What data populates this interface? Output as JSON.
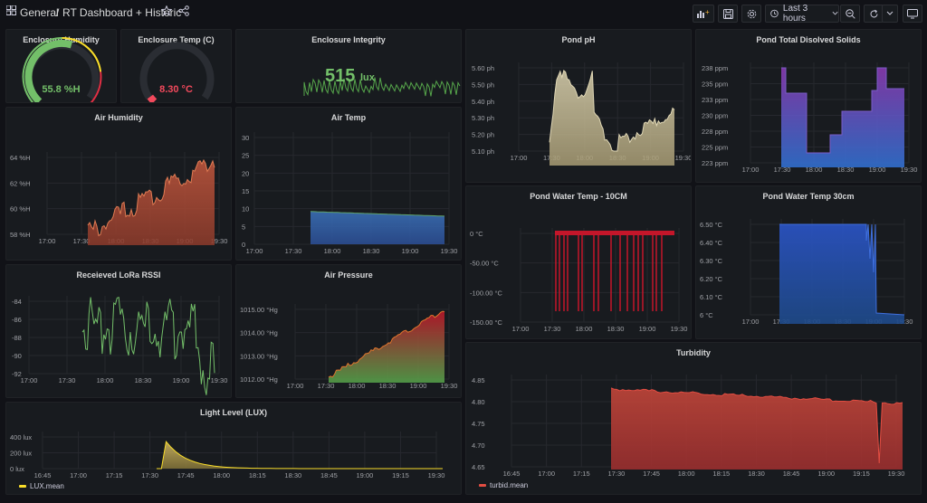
{
  "header": {
    "folder": "General",
    "separator": "/",
    "title": "RT Dashboard + Historic",
    "time_range": "Last 3 hours"
  },
  "colors": {
    "green": "#73bf69",
    "orange": "#e07b53",
    "red": "#e02f44",
    "yellow": "#fade2a",
    "blue": "#3274d9",
    "purple": "#8f3bb8",
    "grid": "#26282e",
    "axis": "#9fa1a6"
  },
  "gauges": [
    {
      "title": "Enclosure Humidity",
      "value": "55.8 %H",
      "fraction": 0.56,
      "color": "#73bf69"
    },
    {
      "title": "Enclosure Temp (C)",
      "value": "8.30 °C",
      "fraction": 0.04,
      "color": "#f2495c"
    }
  ],
  "stat": {
    "title": "Enclosure Integrity",
    "value": "515",
    "unit": "lux",
    "color": "#73bf69"
  },
  "charts": {
    "ph": {
      "title": "Pond pH",
      "y_ticks": [
        "5.60 ph",
        "5.50 ph",
        "5.40 ph",
        "5.30 ph",
        "5.20 ph",
        "5.10 ph"
      ],
      "x_ticks": [
        "17:00",
        "17:30",
        "18:00",
        "18:30",
        "19:00",
        "19:30"
      ]
    },
    "tds": {
      "title": "Pond Total Disolved Solids",
      "y_ticks": [
        "238 ppm",
        "235 ppm",
        "233 ppm",
        "230 ppm",
        "228 ppm",
        "225 ppm",
        "223 ppm"
      ],
      "x_ticks": [
        "17:00",
        "17:30",
        "18:00",
        "18:30",
        "19:00",
        "19:30"
      ]
    },
    "air_humidity": {
      "title": "Air Humidity",
      "y_ticks": [
        "64 %H",
        "62 %H",
        "60 %H",
        "58 %H"
      ],
      "x_ticks": [
        "17:00",
        "17:30",
        "18:00",
        "18:30",
        "19:00",
        "19:30"
      ]
    },
    "air_temp": {
      "title": "Air Temp",
      "y_ticks": [
        "30",
        "25",
        "20",
        "15",
        "10",
        "5",
        "0"
      ],
      "x_ticks": [
        "17:00",
        "17:30",
        "18:00",
        "18:30",
        "19:00",
        "19:30"
      ]
    },
    "water10": {
      "title": "Pond Water Temp - 10CM",
      "y_ticks": [
        "0 °C",
        "-50.00 °C",
        "-100.00 °C",
        "-150.00 °C"
      ],
      "x_ticks": [
        "17:00",
        "17:30",
        "18:00",
        "18:30",
        "19:00",
        "19:30"
      ]
    },
    "water30": {
      "title": "Pond Water Temp 30cm",
      "y_ticks": [
        "6.50 °C",
        "6.40 °C",
        "6.30 °C",
        "6.20 °C",
        "6.10 °C",
        "6 °C"
      ],
      "x_ticks": [
        "17:00",
        "17:30",
        "18:00",
        "18:30",
        "19:00",
        "19:30"
      ]
    },
    "rssi": {
      "title": "Receieved LoRa RSSI",
      "y_ticks": [
        "-84",
        "-86",
        "-88",
        "-90",
        "-92"
      ],
      "x_ticks": [
        "17:00",
        "17:30",
        "18:00",
        "18:30",
        "19:00",
        "19:30"
      ]
    },
    "pressure": {
      "title": "Air Pressure",
      "y_ticks": [
        "1015.00 °Hg",
        "1014.00 °Hg",
        "1013.00 °Hg",
        "1012.00 °Hg"
      ],
      "x_ticks": [
        "17:00",
        "17:30",
        "18:00",
        "18:30",
        "19:00",
        "19:30"
      ]
    },
    "turbidity": {
      "title": "Turbidity",
      "y_ticks": [
        "4.85",
        "4.80",
        "4.75",
        "4.70",
        "4.65"
      ],
      "x_ticks": [
        "16:45",
        "17:00",
        "17:15",
        "17:30",
        "17:45",
        "18:00",
        "18:15",
        "18:30",
        "18:45",
        "19:00",
        "19:15",
        "19:30"
      ],
      "legend": "turbid.mean"
    },
    "light": {
      "title": "Light Level (LUX)",
      "y_ticks": [
        "400 lux",
        "200 lux",
        "0 lux"
      ],
      "x_ticks": [
        "16:45",
        "17:00",
        "17:15",
        "17:30",
        "17:45",
        "18:00",
        "18:15",
        "18:30",
        "18:45",
        "19:00",
        "19:15",
        "19:30"
      ],
      "legend": "LUX.mean"
    }
  }
}
